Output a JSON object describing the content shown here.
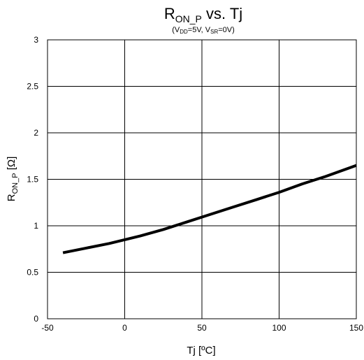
{
  "chart_data": {
    "type": "line",
    "title": {
      "base": "R",
      "sub": "ON_P",
      "rest": " vs. Tj"
    },
    "subtitle": {
      "open": "(V",
      "sub1": "DD",
      "mid": "=5V, V",
      "sub2": "SR",
      "close": "=0V)"
    },
    "xlabel": "Tj [ºC]",
    "ylabel": {
      "base": "R",
      "sub": "ON_P",
      "rest": " [Ω]"
    },
    "xlim": [
      -50,
      150
    ],
    "ylim": [
      0,
      3
    ],
    "xticks": [
      -50,
      0,
      50,
      100,
      150
    ],
    "yticks": [
      0,
      0.5,
      1,
      1.5,
      2,
      2.5,
      3
    ],
    "grid": true,
    "series": [
      {
        "x": [
          -40,
          -25,
          -10,
          0,
          10,
          25,
          40,
          55,
          70,
          85,
          100,
          115,
          130,
          150
        ],
        "y": [
          0.71,
          0.76,
          0.81,
          0.85,
          0.89,
          0.96,
          1.04,
          1.12,
          1.2,
          1.28,
          1.36,
          1.45,
          1.53,
          1.65
        ],
        "color": "#000000"
      }
    ]
  }
}
